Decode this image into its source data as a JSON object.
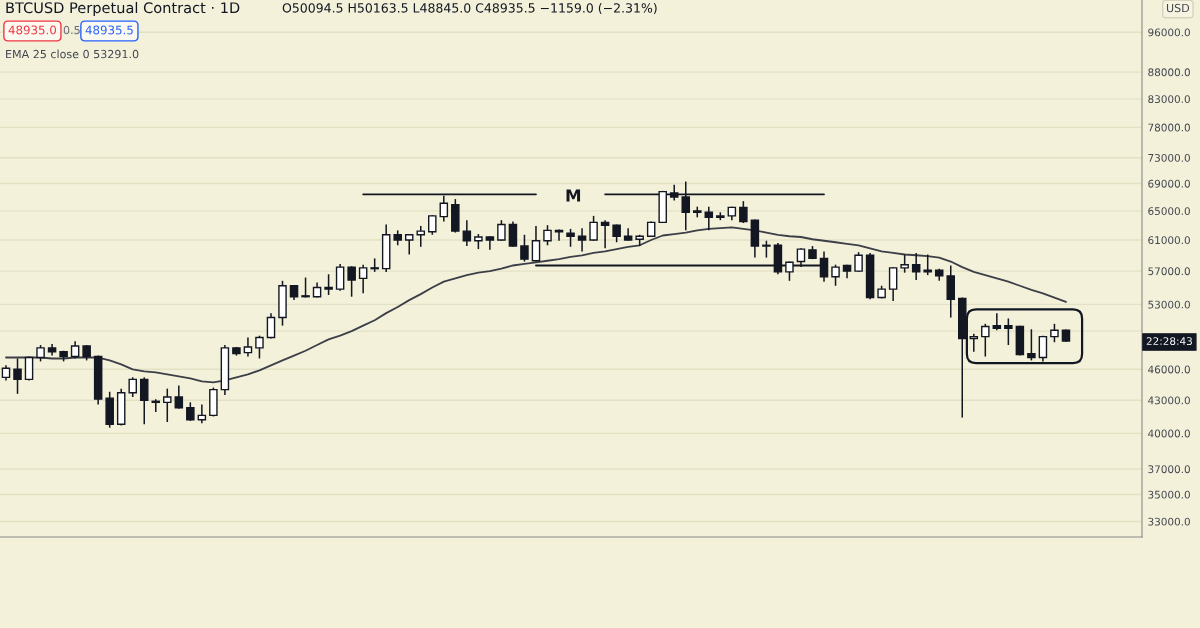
{
  "chart_data": {
    "type": "candlestick",
    "title": "BTCUSD Perpetual Contract · 1D",
    "subtitle": "O50094.5 H50163.5 L48845.0 C48935.5 −1159.0 (−2.31%)",
    "annotations": [
      "48935.0",
      "0.5",
      "48935.5",
      "EMA 25 close 0 53291.0",
      "M",
      "22:28:43",
      "USD"
    ],
    "categories": [
      null,
      null,
      null,
      null,
      null,
      null,
      null,
      null,
      null,
      null,
      null,
      null,
      null,
      null,
      null,
      null,
      null,
      null,
      null,
      null,
      null,
      null,
      null,
      null,
      null,
      null,
      null,
      null,
      null,
      null,
      null,
      null,
      null,
      null,
      null,
      null,
      null,
      null,
      null,
      null,
      null,
      null,
      null,
      null,
      null,
      null,
      null,
      null,
      null,
      null,
      null,
      null,
      null,
      null,
      null,
      null,
      null,
      null,
      null,
      null,
      null,
      null,
      null,
      null,
      null,
      null,
      null,
      null,
      null,
      null,
      null,
      null,
      null,
      null,
      null,
      null,
      null,
      null,
      null,
      null,
      null,
      null,
      null,
      null,
      null,
      null,
      null,
      null,
      null,
      null,
      null,
      null,
      null
    ],
    "ohlc": [
      [
        45200,
        46400,
        44900,
        46100
      ],
      [
        46000,
        47100,
        43600,
        45000
      ],
      [
        45000,
        47300,
        44900,
        47200
      ],
      [
        47200,
        48500,
        46800,
        48200
      ],
      [
        48200,
        48600,
        47400,
        47800
      ],
      [
        47800,
        47900,
        46800,
        47300
      ],
      [
        47300,
        48900,
        47100,
        48400
      ],
      [
        48400,
        48500,
        46900,
        47300
      ],
      [
        47300,
        47400,
        42600,
        43100
      ],
      [
        43200,
        43800,
        40500,
        40800
      ],
      [
        40800,
        44100,
        40700,
        43700
      ],
      [
        43700,
        45200,
        43300,
        45000
      ],
      [
        45000,
        45200,
        40800,
        43000
      ],
      [
        42900,
        43100,
        41900,
        42800
      ],
      [
        42800,
        44100,
        41000,
        43300
      ],
      [
        43300,
        44400,
        42200,
        42300
      ],
      [
        42300,
        42800,
        41100,
        41200
      ],
      [
        41200,
        42600,
        40900,
        41600
      ],
      [
        41600,
        44200,
        41500,
        44000
      ],
      [
        44000,
        48500,
        43500,
        48200
      ],
      [
        48200,
        48300,
        47400,
        47600
      ],
      [
        47700,
        49300,
        47300,
        48300
      ],
      [
        48200,
        49500,
        47100,
        49300
      ],
      [
        49300,
        52000,
        49200,
        51500
      ],
      [
        51500,
        55800,
        50600,
        55200
      ],
      [
        55200,
        55300,
        53500,
        53900
      ],
      [
        54000,
        56200,
        53800,
        53900
      ],
      [
        53900,
        55600,
        53800,
        55000
      ],
      [
        55000,
        56600,
        54100,
        54800
      ],
      [
        54800,
        57900,
        54600,
        57500
      ],
      [
        57500,
        57600,
        53900,
        55900
      ],
      [
        56100,
        57800,
        54300,
        57400
      ],
      [
        57400,
        58600,
        56900,
        57300
      ],
      [
        57300,
        63100,
        56900,
        61700
      ],
      [
        61700,
        62300,
        60300,
        61000
      ],
      [
        61000,
        61800,
        59100,
        61700
      ],
      [
        61700,
        62900,
        60100,
        62200
      ],
      [
        62100,
        64400,
        61700,
        64300
      ],
      [
        64200,
        67200,
        63500,
        66100
      ],
      [
        65900,
        66700,
        62000,
        62200
      ],
      [
        62200,
        63700,
        60200,
        60900
      ],
      [
        60900,
        61800,
        59800,
        61400
      ],
      [
        61400,
        61500,
        59700,
        61000
      ],
      [
        61000,
        63700,
        60900,
        63100
      ],
      [
        63100,
        63500,
        60100,
        60200
      ],
      [
        60200,
        61700,
        58200,
        58500
      ],
      [
        58300,
        62900,
        58200,
        60900
      ],
      [
        60900,
        63000,
        60300,
        62300
      ],
      [
        62300,
        62400,
        60900,
        62100
      ],
      [
        61900,
        62500,
        60100,
        61500
      ],
      [
        61500,
        62600,
        59500,
        61000
      ],
      [
        61000,
        64300,
        60900,
        63400
      ],
      [
        63400,
        63700,
        59900,
        63000
      ],
      [
        63000,
        63100,
        60700,
        61500
      ],
      [
        61500,
        62600,
        60900,
        61000
      ],
      [
        61100,
        61700,
        60200,
        61500
      ],
      [
        61500,
        63500,
        61400,
        63400
      ],
      [
        63400,
        67900,
        63300,
        67800
      ],
      [
        67600,
        68800,
        66500,
        67000
      ],
      [
        67000,
        69300,
        62300,
        64800
      ],
      [
        65000,
        65600,
        64100,
        64800
      ],
      [
        64800,
        65600,
        62300,
        64100
      ],
      [
        64100,
        64800,
        63700,
        64300
      ],
      [
        64300,
        65600,
        63700,
        65500
      ],
      [
        65500,
        66400,
        63300,
        63500
      ],
      [
        63700,
        63800,
        58700,
        60200
      ],
      [
        60200,
        60900,
        58700,
        60300
      ],
      [
        60300,
        60600,
        56600,
        56900
      ],
      [
        56900,
        58200,
        55800,
        58100
      ],
      [
        58200,
        59900,
        57500,
        59800
      ],
      [
        59700,
        60200,
        58500,
        58600
      ],
      [
        58600,
        59500,
        55700,
        56300
      ],
      [
        56300,
        57800,
        55200,
        57500
      ],
      [
        57700,
        57800,
        56100,
        57000
      ],
      [
        57000,
        59400,
        56900,
        59000
      ],
      [
        59000,
        59300,
        53600,
        53800
      ],
      [
        53800,
        55200,
        53700,
        54800
      ],
      [
        54800,
        57500,
        53400,
        57400
      ],
      [
        57400,
        59100,
        56800,
        57800
      ],
      [
        57800,
        59300,
        55900,
        56900
      ],
      [
        57100,
        59100,
        56500,
        56900
      ],
      [
        57100,
        57300,
        55800,
        56400
      ],
      [
        56400,
        57700,
        51500,
        53600
      ],
      [
        53700,
        53800,
        41400,
        49200
      ],
      [
        49200,
        49700,
        47800,
        49400
      ],
      [
        49400,
        50800,
        47300,
        50500
      ],
      [
        50600,
        52000,
        50100,
        50300
      ],
      [
        50600,
        51400,
        48500,
        50300
      ],
      [
        50500,
        50600,
        47400,
        47500
      ],
      [
        47600,
        50200,
        46900,
        47200
      ],
      [
        47200,
        49500,
        46800,
        49400
      ],
      [
        49400,
        50800,
        48800,
        50100
      ],
      [
        50094.5,
        50163.5,
        48845.0,
        48935.5
      ]
    ],
    "color": "#131722",
    "colors": [
      "#ffffff",
      "#131722",
      "#ffffff",
      "#ffffff",
      "#131722",
      "#131722",
      "#ffffff",
      "#131722",
      "#131722",
      "#131722",
      "#ffffff",
      "#ffffff",
      "#131722",
      "#131722",
      "#ffffff",
      "#131722",
      "#131722",
      "#ffffff",
      "#ffffff",
      "#ffffff",
      "#131722",
      "#ffffff",
      "#ffffff",
      "#ffffff",
      "#ffffff",
      "#131722",
      "#131722",
      "#ffffff",
      "#131722",
      "#ffffff",
      "#131722",
      "#ffffff",
      "#131722",
      "#ffffff",
      "#131722",
      "#ffffff",
      "#ffffff",
      "#ffffff",
      "#ffffff",
      "#131722",
      "#131722",
      "#ffffff",
      "#131722",
      "#ffffff",
      "#131722",
      "#131722",
      "#ffffff",
      "#ffffff",
      "#131722",
      "#131722",
      "#131722",
      "#ffffff",
      "#131722",
      "#131722",
      "#131722",
      "#ffffff",
      "#ffffff",
      "#ffffff",
      "#131722",
      "#131722",
      "#131722",
      "#131722",
      "#ffffff",
      "#ffffff",
      "#131722",
      "#131722",
      "#ffffff",
      "#131722",
      "#ffffff",
      "#ffffff",
      "#131722",
      "#131722",
      "#ffffff",
      "#131722",
      "#ffffff",
      "#131722",
      "#ffffff",
      "#ffffff",
      "#ffffff",
      "#131722",
      "#131722",
      "#131722",
      "#131722",
      "#131722",
      "#ffffff",
      "#ffffff",
      "#131722",
      "#131722",
      "#131722",
      "#131722",
      "#ffffff",
      "#ffffff",
      "#131722"
    ],
    "series": [
      {
        "type": "line",
        "color": "#3c3f47",
        "values": [
          47200,
          47200,
          47200,
          47200,
          47100,
          47100,
          47200,
          47200,
          47200,
          46900,
          46500,
          46000,
          45800,
          45700,
          45500,
          45300,
          45100,
          44800,
          44700,
          44900,
          45200,
          45500,
          45900,
          46400,
          46900,
          47400,
          47900,
          48500,
          49100,
          49500,
          50000,
          50600,
          51200,
          52000,
          52700,
          53500,
          54200,
          55000,
          55700,
          56100,
          56500,
          56800,
          57000,
          57300,
          57700,
          57900,
          58100,
          58300,
          58500,
          58800,
          59000,
          59300,
          59500,
          59800,
          60100,
          60300,
          61000,
          61600,
          61800,
          62000,
          62300,
          62500,
          62600,
          62700,
          62500,
          62300,
          62000,
          61700,
          61500,
          61400,
          61100,
          60900,
          60700,
          60500,
          60300,
          59900,
          59500,
          59300,
          59100,
          59000,
          58900,
          58700,
          58200,
          57500,
          56900,
          56500,
          56100,
          55700,
          55200,
          54700,
          54300,
          53800,
          53291
        ]
      },
      {
        "type": "line",
        "color": "#131722",
        "values": [
          null,
          null,
          null,
          null,
          null,
          null,
          null,
          null,
          null,
          null,
          null,
          null,
          null,
          null,
          null,
          null,
          null,
          null,
          null,
          null,
          null,
          null,
          null,
          null,
          null,
          null,
          null,
          null,
          null,
          null,
          null,
          67400,
          67400,
          67400,
          67400,
          67400,
          67400,
          67400,
          67400,
          67400,
          67400,
          67400,
          67400,
          67400,
          67400,
          67400,
          67400,
          null,
          null,
          null,
          null,
          null,
          67400,
          67400,
          67400,
          67400,
          67400,
          67400,
          67400,
          67400,
          67400,
          67400,
          67400,
          67400,
          67400,
          67400,
          67400,
          67400,
          67400,
          67400,
          67400,
          67400,
          null,
          null,
          null,
          null,
          null,
          null,
          null,
          null,
          null,
          null,
          null,
          null,
          null,
          null,
          null,
          null,
          null,
          null,
          null,
          null,
          null
        ]
      },
      {
        "type": "line",
        "color": "#131722",
        "values": [
          null,
          null,
          null,
          null,
          null,
          null,
          null,
          null,
          null,
          null,
          null,
          null,
          null,
          null,
          null,
          null,
          null,
          null,
          null,
          null,
          null,
          null,
          null,
          null,
          null,
          null,
          null,
          null,
          null,
          null,
          null,
          null,
          null,
          null,
          null,
          null,
          null,
          null,
          null,
          null,
          null,
          null,
          null,
          null,
          null,
          null,
          57700,
          57700,
          57700,
          57700,
          57700,
          57700,
          57700,
          57700,
          57700,
          57700,
          57700,
          57700,
          57700,
          57700,
          57700,
          57700,
          57700,
          57700,
          57700,
          57700,
          57700,
          57700,
          57700,
          57700,
          57700,
          57700,
          null,
          null,
          null,
          null,
          null,
          null,
          null,
          null,
          null,
          null,
          null,
          null,
          null,
          null,
          null,
          null,
          null,
          null,
          null,
          null,
          null
        ]
      }
    ],
    "log": true,
    "ylim": [
      31900,
      103000
    ],
    "yticks": [
      {
        "value": 33000,
        "label": "33000.0"
      },
      {
        "value": 35000,
        "label": "35000.0"
      },
      {
        "value": 37000,
        "label": "37000.0"
      },
      {
        "value": 40000,
        "label": "40000.0"
      },
      {
        "value": 43000,
        "label": "43000.0"
      },
      {
        "value": 46000,
        "label": "46000.0"
      },
      {
        "value": 50000,
        "label": null
      },
      {
        "value": 53000,
        "label": "53000.0"
      },
      {
        "value": 57000,
        "label": "57000.0"
      },
      {
        "value": 61000,
        "label": "61000.0"
      },
      {
        "value": 65000,
        "label": "65000.0"
      },
      {
        "value": 69000,
        "label": "69000.0"
      },
      {
        "value": 73000,
        "label": "73000.0"
      },
      {
        "value": 78000,
        "label": "78000.0"
      },
      {
        "value": 83000,
        "label": "83000.0"
      },
      {
        "value": 88000,
        "label": "88000.0"
      },
      {
        "value": 96000,
        "label": "96000.0"
      }
    ],
    "grid": "y",
    "tick_labels": "y"
  }
}
